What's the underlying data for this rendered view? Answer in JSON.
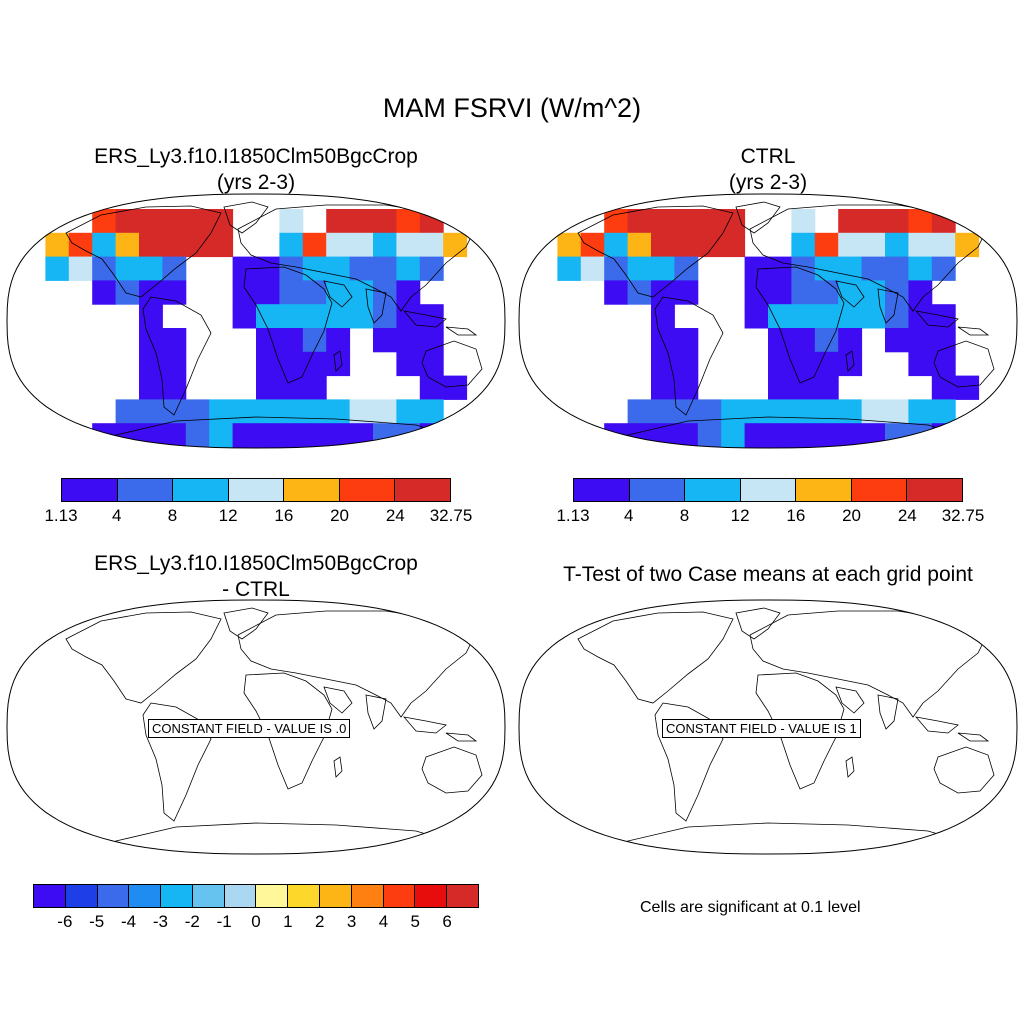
{
  "main_title": "MAM FSRVI (W/m^2)",
  "panels": [
    {
      "title_line1": "ERS_Ly3.f10.I1850Clm50BgcCrop",
      "title_line2": "(yrs 2-3)"
    },
    {
      "title_line1": "CTRL",
      "title_line2": "(yrs 2-3)"
    },
    {
      "title_line1": "ERS_Ly3.f10.I1850Clm50BgcCrop",
      "title_line2": "- CTRL",
      "constant_label": "CONSTANT FIELD - VALUE IS .0"
    },
    {
      "title_line1": "T-Test of two Case means at each grid point",
      "constant_label": "CONSTANT FIELD - VALUE IS 1",
      "note": "Cells are significant at 0.1 level"
    }
  ],
  "colorbar_case": {
    "colors": [
      "#3d0cf2",
      "#3b6bea",
      "#16b5f4",
      "#c6e6f6",
      "#fdb415",
      "#fd3c10",
      "#d52a28"
    ],
    "labels": [
      "1.13",
      "4",
      "8",
      "12",
      "16",
      "20",
      "24",
      "32.75"
    ]
  },
  "colorbar_diff": {
    "colors": [
      "#3d0cf2",
      "#1e3ee8",
      "#3b6bea",
      "#1e8cf0",
      "#16b5f4",
      "#66c2ee",
      "#abd7f0",
      "#fff79a",
      "#fdd82a",
      "#fdb415",
      "#fd8010",
      "#fd3c10",
      "#e80d0d",
      "#d52a28"
    ],
    "labels": [
      "-6",
      "-5",
      "-4",
      "-3",
      "-2",
      "-1",
      "0",
      "1",
      "2",
      "3",
      "4",
      "5",
      "6"
    ]
  }
}
